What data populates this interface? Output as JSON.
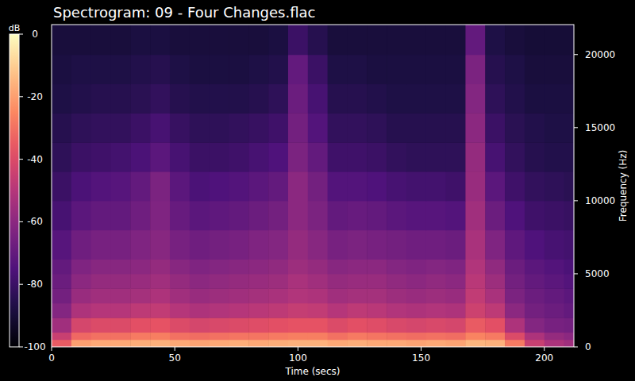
{
  "chart_data": {
    "type": "heatmap",
    "title": "Spectrogram: 09 - Four Changes.flac",
    "x_label": "Time (secs)",
    "y_label": "Frequency (Hz)",
    "xlim": [
      0,
      212
    ],
    "xticks": [
      0,
      50,
      100,
      150,
      200
    ],
    "ylim": [
      0,
      22050
    ],
    "yticks": [
      0,
      5000,
      10000,
      15000,
      20000
    ],
    "xbins": [
      0,
      8,
      16,
      24,
      32,
      40,
      48,
      56,
      64,
      72,
      80,
      88,
      96,
      104,
      112,
      120,
      128,
      136,
      144,
      152,
      160,
      168,
      176,
      184,
      192,
      200,
      208,
      212
    ],
    "ybins": [
      0,
      500,
      1000,
      2000,
      3000,
      4000,
      5000,
      6000,
      8000,
      10000,
      12000,
      14000,
      16000,
      18000,
      20000,
      22050
    ],
    "cells": [
      [
        -35,
        -20,
        -18,
        -18,
        -17,
        -16,
        -18,
        -19,
        -18,
        -17,
        -18,
        -17,
        -16,
        -16,
        -18,
        -17,
        -18,
        -18,
        -19,
        -18,
        -19,
        -15,
        -16,
        -28,
        -45,
        -52,
        -55
      ],
      [
        -45,
        -32,
        -30,
        -30,
        -28,
        -27,
        -30,
        -31,
        -30,
        -29,
        -29,
        -28,
        -27,
        -27,
        -30,
        -28,
        -29,
        -30,
        -31,
        -30,
        -31,
        -26,
        -28,
        -40,
        -52,
        -58,
        -60
      ],
      [
        -55,
        -42,
        -40,
        -40,
        -38,
        -37,
        -40,
        -42,
        -41,
        -40,
        -39,
        -38,
        -37,
        -37,
        -40,
        -38,
        -39,
        -41,
        -42,
        -41,
        -42,
        -35,
        -38,
        -52,
        -62,
        -65,
        -66
      ],
      [
        -62,
        -52,
        -50,
        -50,
        -48,
        -47,
        -50,
        -52,
        -51,
        -50,
        -49,
        -48,
        -46,
        -47,
        -50,
        -48,
        -49,
        -51,
        -52,
        -51,
        -52,
        -44,
        -48,
        -60,
        -66,
        -68,
        -70
      ],
      [
        -66,
        -57,
        -55,
        -55,
        -54,
        -52,
        -55,
        -57,
        -56,
        -55,
        -54,
        -53,
        -51,
        -52,
        -55,
        -54,
        -54,
        -56,
        -57,
        -56,
        -57,
        -47,
        -53,
        -64,
        -68,
        -70,
        -72
      ],
      [
        -68,
        -60,
        -58,
        -58,
        -57,
        -55,
        -58,
        -60,
        -59,
        -58,
        -57,
        -56,
        -53,
        -55,
        -58,
        -57,
        -57,
        -59,
        -60,
        -59,
        -60,
        -49,
        -56,
        -66,
        -70,
        -72,
        -74
      ],
      [
        -70,
        -63,
        -61,
        -61,
        -60,
        -58,
        -61,
        -63,
        -62,
        -61,
        -60,
        -59,
        -56,
        -58,
        -61,
        -60,
        -60,
        -62,
        -63,
        -62,
        -63,
        -51,
        -59,
        -68,
        -72,
        -74,
        -76
      ],
      [
        -73,
        -67,
        -65,
        -65,
        -63,
        -61,
        -65,
        -67,
        -66,
        -65,
        -63,
        -62,
        -58,
        -61,
        -65,
        -64,
        -65,
        -66,
        -67,
        -67,
        -68,
        -53,
        -63,
        -71,
        -75,
        -77,
        -78
      ],
      [
        -77,
        -72,
        -70,
        -70,
        -67,
        -63,
        -69,
        -72,
        -71,
        -70,
        -68,
        -66,
        -60,
        -64,
        -70,
        -69,
        -70,
        -72,
        -73,
        -73,
        -74,
        -55,
        -68,
        -75,
        -79,
        -80,
        -81
      ],
      [
        -80,
        -76,
        -74,
        -73,
        -70,
        -64,
        -72,
        -76,
        -75,
        -74,
        -72,
        -70,
        -60,
        -66,
        -74,
        -74,
        -75,
        -77,
        -78,
        -78,
        -79,
        -57,
        -72,
        -79,
        -82,
        -83,
        -84
      ],
      [
        -83,
        -80,
        -79,
        -78,
        -76,
        -72,
        -77,
        -80,
        -80,
        -79,
        -77,
        -75,
        -64,
        -70,
        -79,
        -79,
        -80,
        -82,
        -83,
        -83,
        -83,
        -58,
        -77,
        -82,
        -85,
        -86,
        -86
      ],
      [
        -85,
        -83,
        -82,
        -82,
        -80,
        -77,
        -81,
        -83,
        -83,
        -82,
        -81,
        -79,
        -66,
        -74,
        -82,
        -82,
        -83,
        -85,
        -85,
        -85,
        -85,
        -60,
        -80,
        -84,
        -86,
        -87,
        -87
      ],
      [
        -87,
        -86,
        -85,
        -85,
        -84,
        -82,
        -85,
        -86,
        -86,
        -86,
        -85,
        -83,
        -68,
        -77,
        -85,
        -85,
        -86,
        -87,
        -87,
        -87,
        -87,
        -62,
        -83,
        -86,
        -88,
        -88,
        -88
      ],
      [
        -88,
        -87,
        -87,
        -87,
        -86,
        -85,
        -87,
        -88,
        -88,
        -88,
        -87,
        -86,
        -70,
        -80,
        -87,
        -87,
        -88,
        -88,
        -88,
        -88,
        -88,
        -64,
        -85,
        -87,
        -89,
        -89,
        -89
      ],
      [
        -89,
        -89,
        -89,
        -89,
        -88,
        -88,
        -89,
        -89,
        -89,
        -89,
        -89,
        -88,
        -80,
        -85,
        -89,
        -89,
        -89,
        -89,
        -89,
        -89,
        -89,
        -70,
        -87,
        -89,
        -90,
        -90,
        -90
      ]
    ],
    "colorbar": {
      "label": "dB",
      "lim": [
        -100,
        0
      ],
      "ticks": [
        0,
        -20,
        -40,
        -60,
        -80,
        -100
      ]
    }
  }
}
